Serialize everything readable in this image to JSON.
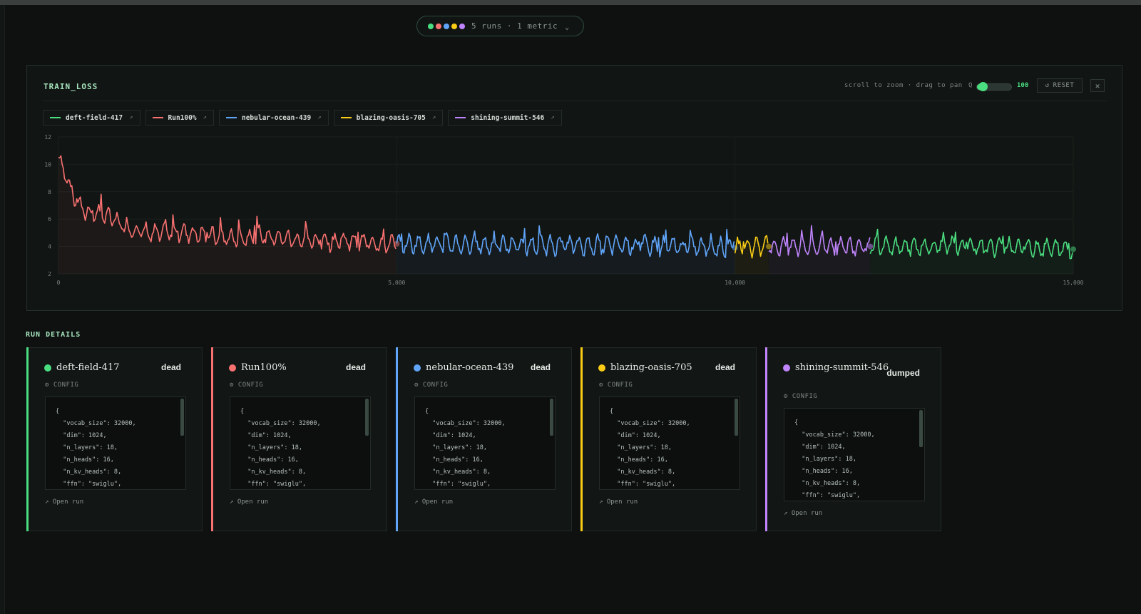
{
  "header": {
    "summary": "5 runs · 1 metric",
    "run_dot_colors": [
      "#4ade80",
      "#f87171",
      "#60a5fa",
      "#facc15",
      "#c084fc"
    ],
    "chevron_icon": "chevron-down-icon"
  },
  "panel": {
    "title": "TRAIN_LOSS",
    "hint": "scroll to zoom · drag to pan",
    "zoom_prefix": "Q",
    "zoom_value": "100",
    "zoom_level_fraction": 0.0,
    "reset_label": "RESET",
    "reset_icon": "refresh-icon",
    "close_icon": "close-icon"
  },
  "legend": [
    {
      "name": "deft-field-417",
      "color": "#4ade80"
    },
    {
      "name": "Run100%",
      "color": "#f87171"
    },
    {
      "name": "nebular-ocean-439",
      "color": "#60a5fa"
    },
    {
      "name": "blazing-oasis-705",
      "color": "#facc15"
    },
    {
      "name": "shining-summit-546",
      "color": "#c084fc"
    }
  ],
  "chart_data": {
    "type": "line",
    "title": "TRAIN_LOSS",
    "xlabel": "",
    "ylabel": "",
    "xlim": [
      0,
      15000
    ],
    "ylim": [
      2,
      12
    ],
    "x_ticks": [
      "0",
      "5,000",
      "10,000",
      "15,000"
    ],
    "y_ticks": [
      "2",
      "4",
      "6",
      "8",
      "10",
      "12"
    ],
    "grid": true,
    "series": [
      {
        "name": "Run100%",
        "color": "#f87171",
        "x_range": [
          0,
          5000
        ],
        "start": 10.5,
        "level": 4.3,
        "points": [
          [
            0,
            10.5
          ],
          [
            100,
            9.4
          ],
          [
            200,
            7.7
          ],
          [
            400,
            6.5
          ],
          [
            700,
            6.3
          ],
          [
            1000,
            5.4
          ],
          [
            1400,
            4.9
          ],
          [
            1800,
            5.1
          ],
          [
            2200,
            4.8
          ],
          [
            2600,
            4.6
          ],
          [
            3000,
            4.8
          ],
          [
            3500,
            4.5
          ],
          [
            4000,
            4.4
          ],
          [
            4500,
            4.3
          ],
          [
            5000,
            4.2
          ]
        ]
      },
      {
        "name": "nebular-ocean-439",
        "color": "#60a5fa",
        "x_range": [
          5000,
          10000
        ],
        "start": 4.2,
        "level": 4.1,
        "points": [
          [
            5000,
            4.2
          ],
          [
            5700,
            4.2
          ],
          [
            6400,
            4.1
          ],
          [
            7100,
            4.1
          ],
          [
            7800,
            4.1
          ],
          [
            8500,
            4.1
          ],
          [
            9200,
            4.0
          ],
          [
            10000,
            3.9
          ]
        ]
      },
      {
        "name": "blazing-oasis-705",
        "color": "#facc15",
        "x_range": [
          10000,
          10500
        ],
        "start": 4.0,
        "level": 4.0,
        "points": [
          [
            10000,
            4.0
          ],
          [
            10250,
            4.0
          ],
          [
            10500,
            4.0
          ]
        ]
      },
      {
        "name": "shining-summit-546",
        "color": "#c084fc",
        "x_range": [
          10500,
          12000
        ],
        "start": 4.0,
        "level": 4.0,
        "points": [
          [
            10500,
            4.0
          ],
          [
            11000,
            4.0
          ],
          [
            11500,
            4.0
          ],
          [
            12000,
            4.0
          ]
        ]
      },
      {
        "name": "deft-field-417",
        "color": "#4ade80",
        "x_range": [
          12000,
          15000
        ],
        "start": 4.0,
        "level": 4.0,
        "points": [
          [
            12000,
            4.0
          ],
          [
            13000,
            4.0
          ],
          [
            14000,
            4.0
          ],
          [
            15000,
            3.8
          ]
        ]
      }
    ]
  },
  "run_details": {
    "title": "RUN DETAILS",
    "config_label": "CONFIG",
    "config_icon": "gear-icon",
    "open_label": "Open run",
    "open_icon": "external-link-icon",
    "code_lines": [
      "{",
      "  \"vocab_size\": 32000,",
      "  \"dim\": 1024,",
      "  \"n_layers\": 18,",
      "  \"n_heads\": 16,",
      "  \"n_kv_heads\": 8,",
      "  \"ffn\": \"swiglu\","
    ],
    "runs": [
      {
        "name": "deft-field-417",
        "status": "dead",
        "color": "#4ade80"
      },
      {
        "name": "Run100%",
        "status": "dead",
        "color": "#f87171"
      },
      {
        "name": "nebular-ocean-439",
        "status": "dead",
        "color": "#60a5fa"
      },
      {
        "name": "blazing-oasis-705",
        "status": "dead",
        "color": "#facc15"
      },
      {
        "name": "shining-summit-546",
        "status": "dumped",
        "color": "#c084fc"
      }
    ]
  }
}
